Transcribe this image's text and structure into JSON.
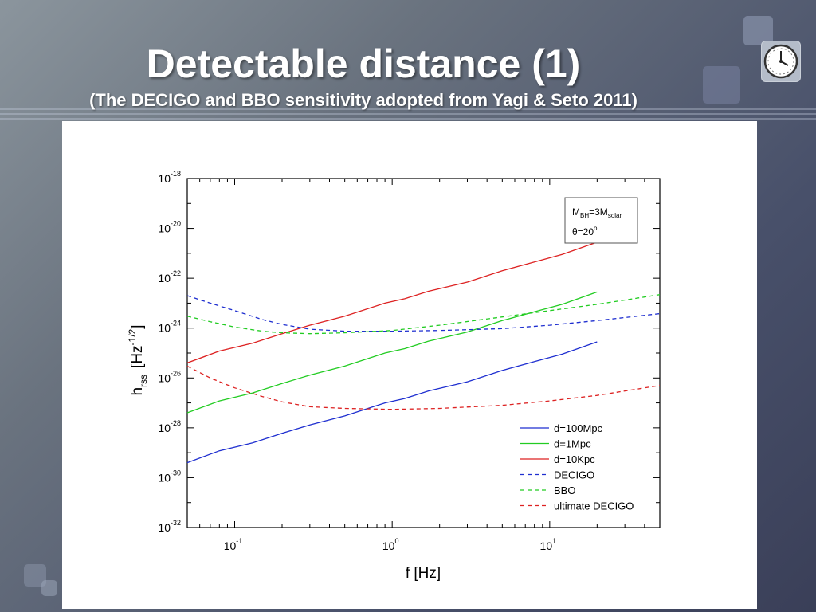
{
  "slide": {
    "title": "Detectable distance (1)",
    "subtitle": "(The DECIGO and BBO sensitivity adopted from Yagi & Seto 2011)",
    "colors": {
      "title_text": "#ffffff",
      "background_light": "#8b959d",
      "background_dark": "#3a3f58",
      "panel": "#ffffff"
    },
    "badge_icon": "clock-dial-icon"
  },
  "chart_data": {
    "type": "line",
    "title": "",
    "xlabel": "f [Hz]",
    "ylabel_main": "h",
    "ylabel_sub": "rss",
    "ylabel_unit_open": "[Hz",
    "ylabel_unit_exp": "-1/2",
    "ylabel_unit_close": "]",
    "x_scale": "log",
    "y_scale": "log",
    "xlim": [
      0.05,
      50
    ],
    "ylim": [
      1e-32,
      1e-18
    ],
    "grid": false,
    "x_ticks": [
      {
        "base": "10",
        "exp": "-1",
        "value": 0.1
      },
      {
        "base": "10",
        "exp": "0",
        "value": 1
      },
      {
        "base": "10",
        "exp": "1",
        "value": 10
      }
    ],
    "y_ticks": [
      {
        "base": "10",
        "exp": "-18",
        "value": 1e-18
      },
      {
        "base": "10",
        "exp": "-20",
        "value": 1e-20
      },
      {
        "base": "10",
        "exp": "-22",
        "value": 1e-22
      },
      {
        "base": "10",
        "exp": "-24",
        "value": 1e-24
      },
      {
        "base": "10",
        "exp": "-26",
        "value": 1e-26
      },
      {
        "base": "10",
        "exp": "-28",
        "value": 1e-28
      },
      {
        "base": "10",
        "exp": "-30",
        "value": 1e-30
      },
      {
        "base": "10",
        "exp": "-32",
        "value": 1e-32
      }
    ],
    "annotation": {
      "line1_main": "M",
      "line1_sub": "BH",
      "line1_mid": "=3M",
      "line1_sub2": "solar",
      "line2_main": "θ=20",
      "line2_sup": "o",
      "placement": "top-right"
    },
    "legend_placement": "bottom-right",
    "series": [
      {
        "name": "d=100Mpc",
        "color": "#1f2fd0",
        "dash": false,
        "x": [
          0.05,
          0.08,
          0.13,
          0.2,
          0.3,
          0.5,
          0.9,
          1.2,
          1.7,
          3,
          5,
          8,
          12,
          20
        ],
        "y": [
          4e-30,
          1.2e-29,
          2.5e-29,
          6e-29,
          1.3e-28,
          3e-28,
          1e-27,
          1.5e-27,
          3e-27,
          7e-27,
          2e-26,
          4.5e-26,
          9e-26,
          2.8e-25
        ]
      },
      {
        "name": "d=1Mpc",
        "color": "#22cc22",
        "dash": false,
        "x": [
          0.05,
          0.08,
          0.13,
          0.2,
          0.3,
          0.5,
          0.9,
          1.2,
          1.7,
          3,
          5,
          8,
          12,
          20
        ],
        "y": [
          4e-28,
          1.2e-27,
          2.5e-27,
          6e-27,
          1.3e-26,
          3e-26,
          1e-25,
          1.5e-25,
          3e-25,
          7e-25,
          2e-24,
          4.5e-24,
          9e-24,
          2.8e-23
        ]
      },
      {
        "name": "d=10Kpc",
        "color": "#dd2222",
        "dash": false,
        "x": [
          0.05,
          0.08,
          0.13,
          0.2,
          0.3,
          0.5,
          0.9,
          1.2,
          1.7,
          3,
          5,
          8,
          12,
          20
        ],
        "y": [
          4e-26,
          1.2e-25,
          2.5e-25,
          6e-25,
          1.3e-24,
          3e-24,
          1e-23,
          1.5e-23,
          3e-23,
          7e-23,
          2e-22,
          4.5e-22,
          9e-22,
          2.8e-21
        ]
      },
      {
        "name": "DECIGO",
        "color": "#1f2fd0",
        "dash": true,
        "x": [
          0.05,
          0.07,
          0.1,
          0.15,
          0.2,
          0.3,
          0.5,
          1,
          2,
          5,
          10,
          20,
          50
        ],
        "y": [
          2e-23,
          1e-23,
          5e-24,
          2.2e-24,
          1.4e-24,
          9e-25,
          7.5e-25,
          7.5e-25,
          8e-25,
          9.5e-25,
          1.3e-24,
          2e-24,
          3.8e-24
        ]
      },
      {
        "name": "BBO",
        "color": "#22cc22",
        "dash": true,
        "x": [
          0.05,
          0.07,
          0.1,
          0.15,
          0.2,
          0.3,
          0.5,
          1,
          2,
          5,
          10,
          20,
          50
        ],
        "y": [
          3e-24,
          1.8e-24,
          1.1e-24,
          7.5e-25,
          6.5e-25,
          6e-25,
          6.5e-25,
          8e-25,
          1.3e-24,
          2.8e-24,
          5e-24,
          9e-24,
          2.2e-23
        ]
      },
      {
        "name": "ultimate DECIGO",
        "color": "#dd2222",
        "dash": true,
        "x": [
          0.05,
          0.07,
          0.1,
          0.15,
          0.2,
          0.3,
          0.5,
          1,
          2,
          5,
          10,
          20,
          50
        ],
        "y": [
          3e-26,
          1e-26,
          4e-27,
          1.8e-27,
          1.1e-27,
          7e-28,
          6e-28,
          5.5e-28,
          6e-28,
          8e-28,
          1.2e-27,
          2e-27,
          5e-27
        ]
      }
    ]
  }
}
